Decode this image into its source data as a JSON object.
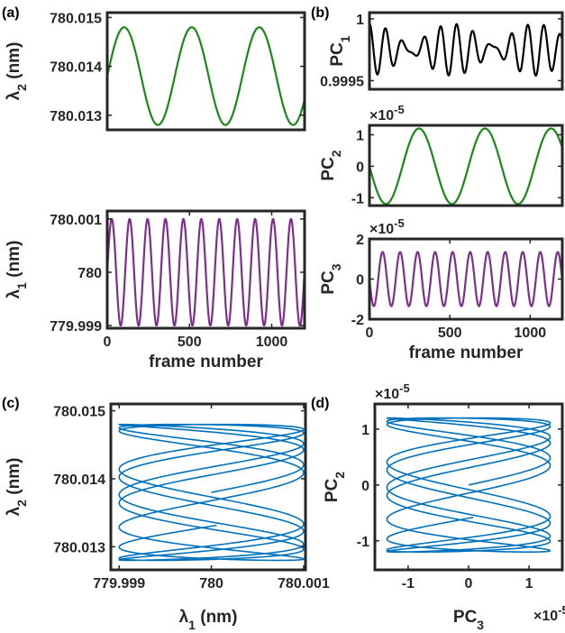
{
  "colors": {
    "green": "#178a17",
    "purple": "#7e2f8e",
    "black": "#000000",
    "blue": "#0072bd",
    "axis": "#262626"
  },
  "panel_labels": [
    "(a)",
    "(b)",
    "(c)",
    "(d)"
  ],
  "chart_data": [
    {
      "id": "a-top",
      "type": "line",
      "panel": "(a)",
      "ylabel_main": "λ",
      "ylabel_sub": "2",
      "ylabel_unit": " (nm)",
      "xlim": [
        0,
        1200
      ],
      "ylim": [
        780.0127,
        780.0151
      ],
      "yticks": [
        780.013,
        780.014,
        780.015
      ],
      "ytick_labels": [
        "780.013",
        "780.014",
        "780.015"
      ],
      "xticks": [],
      "xtick_labels": [],
      "series": [
        {
          "color": "#178a17",
          "mean": 780.0138,
          "amplitude": 0.001,
          "period": 411,
          "phase_deg": 0
        }
      ]
    },
    {
      "id": "a-bottom",
      "type": "line",
      "ylabel_main": "λ",
      "ylabel_sub": "1",
      "ylabel_unit": " (nm)",
      "xlabel": "frame number",
      "xlim": [
        0,
        1200
      ],
      "ylim": [
        779.99895,
        780.00115
      ],
      "yticks": [
        779.999,
        780,
        780.001
      ],
      "ytick_labels": [
        "779.999",
        "780",
        "780.001"
      ],
      "xticks": [
        0,
        500,
        1000
      ],
      "xtick_labels": [
        "0",
        "500",
        "1000"
      ],
      "series": [
        {
          "color": "#7e2f8e",
          "mean": 780.0,
          "amplitude": 0.001,
          "period": 109,
          "phase_deg": 0
        }
      ]
    },
    {
      "id": "b-pc1",
      "type": "line",
      "panel": "(b)",
      "ylabel_main": "PC",
      "ylabel_sub": "1",
      "ylabel_unit": "",
      "xlim": [
        0,
        1200
      ],
      "ylim": [
        0.99943,
        1.00005
      ],
      "yticks": [
        0.9995,
        1
      ],
      "ytick_labels": [
        "0.9995",
        "1"
      ],
      "xticks": [],
      "xtick_labels": [],
      "series": [
        {
          "color": "#000000",
          "mean": 0.99975,
          "beat": [
            {
              "amplitude": 0.00012,
              "period": 109
            },
            {
              "amplitude": 9e-05,
              "period": 90
            }
          ]
        }
      ]
    },
    {
      "id": "b-pc2",
      "type": "line",
      "ylabel_main": "PC",
      "ylabel_sub": "2",
      "ylabel_unit": "",
      "exponent": "×10",
      "exponent_power": "-5",
      "xlim": [
        0,
        1200
      ],
      "ylim": [
        -1.25,
        1.3
      ],
      "yticks": [
        -1,
        0,
        1
      ],
      "ytick_labels": [
        "-1",
        "0",
        "1"
      ],
      "xticks": [],
      "xtick_labels": [],
      "series": [
        {
          "color": "#178a17",
          "mean": 0,
          "amplitude": 1.2,
          "period": 411,
          "phase_deg": 180
        }
      ]
    },
    {
      "id": "b-pc3",
      "type": "line",
      "ylabel_main": "PC",
      "ylabel_sub": "3",
      "ylabel_unit": "",
      "exponent": "×10",
      "exponent_power": "-5",
      "xlabel": "frame number",
      "xlim": [
        0,
        1200
      ],
      "ylim": [
        -2,
        2
      ],
      "yticks": [
        -2,
        0,
        2
      ],
      "ytick_labels": [
        "-2",
        "0",
        "2"
      ],
      "xticks": [
        0,
        500,
        1000
      ],
      "xtick_labels": [
        "0",
        "500",
        "1000"
      ],
      "series": [
        {
          "color": "#7e2f8e",
          "mean": 0,
          "amplitude": 1.35,
          "period": 109,
          "phase_deg": 180
        }
      ]
    },
    {
      "id": "c",
      "type": "line",
      "panel": "(c)",
      "parametric": true,
      "xlabel_main": "λ",
      "xlabel_sub": "1",
      "xlabel_unit": " (nm)",
      "ylabel_main": "λ",
      "ylabel_sub": "2",
      "ylabel_unit": " (nm)",
      "xlim": [
        779.99891,
        780.00102
      ],
      "ylim": [
        780.01266,
        780.0151
      ],
      "xticks": [
        779.999,
        780,
        780.001
      ],
      "xtick_labels": [
        "779.999",
        "780",
        "780.001"
      ],
      "yticks": [
        780.013,
        780.014,
        780.015
      ],
      "ytick_labels": [
        "780.013",
        "780.014",
        "780.015"
      ],
      "series": [
        {
          "color": "#0072bd",
          "x_mean": 780.0,
          "x_amplitude": 0.001,
          "x_period": 109,
          "y_mean": 780.0138,
          "y_amplitude": 0.001,
          "y_period": 411,
          "frames": 1200
        }
      ]
    },
    {
      "id": "d",
      "type": "line",
      "panel": "(d)",
      "parametric": true,
      "xlabel_main": "PC",
      "xlabel_sub": "3",
      "xlabel_unit": "",
      "ylabel_main": "PC",
      "ylabel_sub": "2",
      "ylabel_unit": "",
      "y_exponent": "×10",
      "y_exponent_power": "-5",
      "x_exponent": "×10",
      "x_exponent_power": "-5",
      "xlim": [
        -1.55,
        1.55
      ],
      "ylim": [
        -1.52,
        1.45
      ],
      "xticks": [
        -1,
        0,
        1
      ],
      "xtick_labels": [
        "-1",
        "0",
        "1"
      ],
      "yticks": [
        -1,
        0,
        1
      ],
      "ytick_labels": [
        "-1",
        "0",
        "1"
      ],
      "series": [
        {
          "color": "#0072bd",
          "x_mean": 0,
          "x_amplitude": 1.35,
          "x_period": 109,
          "y_mean": 0,
          "y_amplitude": 1.2,
          "y_period": 411,
          "frames": 1200
        }
      ]
    }
  ]
}
